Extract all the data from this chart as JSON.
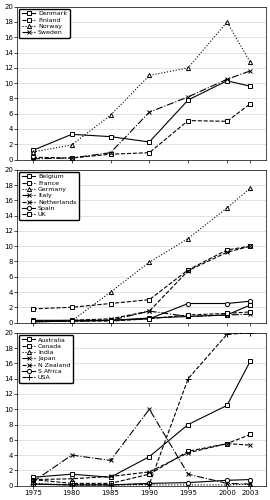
{
  "years": [
    1975,
    1980,
    1985,
    1990,
    1995,
    2000,
    2003
  ],
  "panel1": {
    "ylim": [
      0,
      20
    ],
    "yticks": [
      0,
      2,
      4,
      6,
      8,
      10,
      12,
      14,
      16,
      18,
      20
    ],
    "series": [
      {
        "name": "Denmark",
        "values": [
          1.2,
          3.3,
          3.0,
          2.3,
          7.8,
          10.3,
          9.6
        ],
        "ls": "-",
        "marker": "s",
        "ms": 3
      },
      {
        "name": "Finland",
        "values": [
          0.3,
          0.2,
          0.7,
          0.9,
          5.1,
          5.0,
          7.3
        ],
        "ls": "--",
        "marker": "s",
        "ms": 3
      },
      {
        "name": "Norway",
        "values": [
          1.0,
          1.9,
          5.8,
          11.0,
          12.0,
          18.0,
          12.7
        ],
        "ls": ":",
        "marker": "^",
        "ms": 3
      },
      {
        "name": "Sweden",
        "values": [
          0.1,
          0.2,
          0.9,
          6.2,
          8.2,
          10.5,
          11.6
        ],
        "ls": "-.",
        "marker": "x",
        "ms": 3
      }
    ]
  },
  "panel2": {
    "ylim": [
      0,
      20
    ],
    "yticks": [
      0,
      2,
      4,
      6,
      8,
      10,
      12,
      14,
      16,
      18,
      20
    ],
    "series": [
      {
        "name": "Belgium",
        "values": [
          0.3,
          0.3,
          0.3,
          0.6,
          0.8,
          1.0,
          2.3
        ],
        "ls": "-",
        "marker": "s",
        "ms": 3
      },
      {
        "name": "France",
        "values": [
          1.8,
          2.0,
          2.5,
          3.0,
          6.9,
          9.5,
          10.0
        ],
        "ls": "--",
        "marker": "s",
        "ms": 3
      },
      {
        "name": "Germany",
        "values": [
          0.1,
          0.2,
          4.0,
          7.9,
          11.0,
          15.0,
          17.6
        ],
        "ls": ":",
        "marker": "^",
        "ms": 3
      },
      {
        "name": "Italy",
        "values": [
          0.2,
          0.2,
          0.3,
          1.5,
          0.8,
          1.0,
          1.1
        ],
        "ls": "-.",
        "marker": "x",
        "ms": 3
      },
      {
        "name": "Netherlands",
        "values": [
          0.2,
          0.3,
          0.5,
          1.5,
          6.8,
          9.2,
          10.0
        ],
        "ls": "--",
        "marker": "x",
        "ms": 3
      },
      {
        "name": "Spain",
        "values": [
          0.1,
          0.2,
          0.3,
          0.5,
          2.5,
          2.5,
          2.8
        ],
        "ls": "-",
        "marker": "o",
        "ms": 3
      },
      {
        "name": "UK",
        "values": [
          0.2,
          0.2,
          0.2,
          0.5,
          1.0,
          1.2,
          1.4
        ],
        "ls": "--",
        "marker": "s",
        "ms": 3
      }
    ]
  },
  "panel3": {
    "ylim": [
      0,
      20
    ],
    "yticks": [
      0,
      2,
      4,
      6,
      8,
      10,
      12,
      14,
      16,
      18,
      20
    ],
    "series": [
      {
        "name": "Australia",
        "values": [
          1.1,
          1.5,
          1.1,
          3.8,
          8.0,
          10.5,
          16.3
        ],
        "ls": "-",
        "marker": "s",
        "ms": 3
      },
      {
        "name": "Canada",
        "values": [
          0.8,
          0.3,
          0.3,
          1.5,
          4.5,
          5.5,
          6.7
        ],
        "ls": "--",
        "marker": "s",
        "ms": 3
      },
      {
        "name": "India",
        "values": [
          0.3,
          0.1,
          0.1,
          0.1,
          0.1,
          0.1,
          0.2
        ],
        "ls": ":",
        "marker": "^",
        "ms": 3
      },
      {
        "name": "Japan",
        "values": [
          0.5,
          4.0,
          3.3,
          10.0,
          1.5,
          0.3,
          0.2
        ],
        "ls": "-.",
        "marker": "x",
        "ms": 3
      },
      {
        "name": "N Zealand",
        "values": [
          0.8,
          0.9,
          1.2,
          1.8,
          4.3,
          5.5,
          5.3
        ],
        "ls": "--",
        "marker": "x",
        "ms": 3
      },
      {
        "name": "S Africa",
        "values": [
          0.2,
          0.1,
          0.1,
          0.3,
          0.4,
          0.7,
          0.8
        ],
        "ls": "-",
        "marker": "o",
        "ms": 3
      },
      {
        "name": "USA",
        "values": [
          0.2,
          0.1,
          0.1,
          0.2,
          14.0,
          19.8,
          20.0
        ],
        "ls": "--",
        "marker": "+",
        "ms": 4
      }
    ]
  },
  "color": "black",
  "lw": 0.8,
  "legend_fontsize": 4.5,
  "tick_fontsize": 5
}
